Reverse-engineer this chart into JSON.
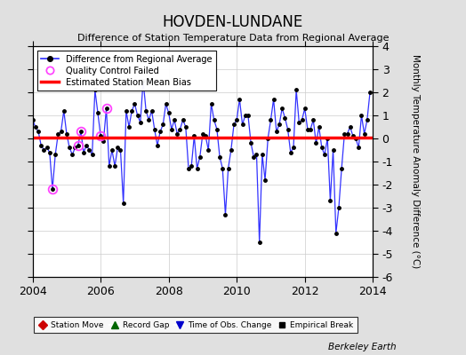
{
  "title": "HOVDEN-LUNDANE",
  "subtitle": "Difference of Station Temperature Data from Regional Average",
  "ylabel_right": "Monthly Temperature Anomaly Difference (°C)",
  "watermark": "Berkeley Earth",
  "xlim": [
    2004.0,
    2014.0
  ],
  "ylim": [
    -6,
    4
  ],
  "yticks": [
    -6,
    -5,
    -4,
    -3,
    -2,
    -1,
    0,
    1,
    2,
    3,
    4
  ],
  "xticks": [
    2004,
    2006,
    2008,
    2010,
    2012,
    2014
  ],
  "bias_line_y": 0.05,
  "background_color": "#e0e0e0",
  "plot_bg_color": "#ffffff",
  "line_color": "#3333ff",
  "bias_color": "#ff0000",
  "qc_color": "#ff44ff",
  "x_data": [
    2004.0,
    2004.083,
    2004.167,
    2004.25,
    2004.333,
    2004.417,
    2004.5,
    2004.583,
    2004.667,
    2004.75,
    2004.833,
    2004.917,
    2005.0,
    2005.083,
    2005.167,
    2005.25,
    2005.333,
    2005.417,
    2005.5,
    2005.583,
    2005.667,
    2005.75,
    2005.833,
    2005.917,
    2006.0,
    2006.083,
    2006.167,
    2006.25,
    2006.333,
    2006.417,
    2006.5,
    2006.583,
    2006.667,
    2006.75,
    2006.833,
    2006.917,
    2007.0,
    2007.083,
    2007.167,
    2007.25,
    2007.333,
    2007.417,
    2007.5,
    2007.583,
    2007.667,
    2007.75,
    2007.833,
    2007.917,
    2008.0,
    2008.083,
    2008.167,
    2008.25,
    2008.333,
    2008.417,
    2008.5,
    2008.583,
    2008.667,
    2008.75,
    2008.833,
    2008.917,
    2009.0,
    2009.083,
    2009.167,
    2009.25,
    2009.333,
    2009.417,
    2009.5,
    2009.583,
    2009.667,
    2009.75,
    2009.833,
    2009.917,
    2010.0,
    2010.083,
    2010.167,
    2010.25,
    2010.333,
    2010.417,
    2010.5,
    2010.583,
    2010.667,
    2010.75,
    2010.833,
    2010.917,
    2011.0,
    2011.083,
    2011.167,
    2011.25,
    2011.333,
    2011.417,
    2011.5,
    2011.583,
    2011.667,
    2011.75,
    2011.833,
    2011.917,
    2012.0,
    2012.083,
    2012.167,
    2012.25,
    2012.333,
    2012.417,
    2012.5,
    2012.583,
    2012.667,
    2012.75,
    2012.833,
    2012.917,
    2013.0,
    2013.083,
    2013.167,
    2013.25,
    2013.333,
    2013.417,
    2013.5,
    2013.583,
    2013.667,
    2013.75,
    2013.833,
    2013.917
  ],
  "y_data": [
    0.8,
    0.5,
    0.3,
    -0.3,
    -0.5,
    -0.4,
    -0.6,
    -2.2,
    -0.7,
    0.2,
    0.3,
    1.2,
    0.2,
    -0.4,
    -0.7,
    -0.4,
    -0.3,
    0.3,
    -0.6,
    -0.3,
    -0.5,
    -0.7,
    2.1,
    1.1,
    0.1,
    -0.1,
    1.3,
    -1.2,
    -0.5,
    -1.2,
    -0.4,
    -0.5,
    -2.8,
    1.2,
    0.5,
    1.2,
    1.5,
    1.0,
    0.7,
    2.5,
    1.2,
    0.8,
    1.2,
    0.4,
    -0.3,
    0.3,
    0.6,
    1.5,
    1.1,
    0.4,
    0.8,
    0.2,
    0.4,
    0.8,
    0.5,
    -1.3,
    -1.2,
    0.1,
    -1.3,
    -0.8,
    0.2,
    0.1,
    -0.5,
    1.5,
    0.8,
    0.4,
    -0.8,
    -1.3,
    -3.3,
    -1.3,
    -0.5,
    0.6,
    0.8,
    1.7,
    0.6,
    1.0,
    1.0,
    -0.2,
    -0.8,
    -0.7,
    -4.5,
    -0.7,
    -1.8,
    0.0,
    0.8,
    1.7,
    0.3,
    0.6,
    1.3,
    0.9,
    0.4,
    -0.6,
    -0.4,
    2.1,
    0.7,
    0.8,
    1.3,
    0.4,
    0.4,
    0.8,
    -0.2,
    0.5,
    -0.4,
    -0.7,
    0.0,
    -2.7,
    -0.5,
    -4.1,
    -3.0,
    -1.3,
    0.2,
    0.2,
    0.5,
    0.1,
    0.0,
    -0.4,
    1.0,
    0.2,
    0.8,
    2.0
  ],
  "qc_failed_x": [
    2004.583,
    2005.333,
    2005.417,
    2006.0,
    2006.167
  ],
  "qc_failed_y": [
    -2.2,
    -0.3,
    0.3,
    0.1,
    1.3
  ]
}
